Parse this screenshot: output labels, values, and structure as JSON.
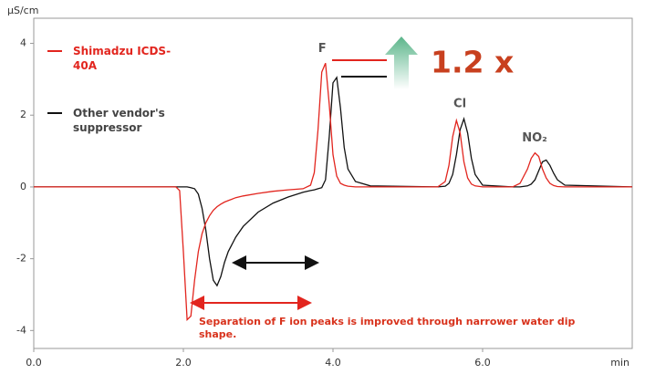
{
  "chart_data": {
    "type": "line",
    "y_label": "μS/cm",
    "x_label": "min",
    "x": [
      0,
      1.9,
      1.95,
      2.0,
      2.05,
      2.1,
      2.15,
      2.2,
      2.25,
      2.3,
      2.35,
      2.4,
      2.45,
      2.5,
      2.55,
      2.6,
      2.7,
      2.8,
      3.0,
      3.2,
      3.4,
      3.6,
      3.7,
      3.75,
      3.8,
      3.85,
      3.9,
      3.95,
      4.0,
      4.05,
      4.1,
      4.15,
      4.2,
      4.3,
      4.5,
      5.4,
      5.5,
      5.55,
      5.6,
      5.65,
      5.7,
      5.75,
      5.8,
      5.85,
      5.9,
      6.0,
      6.4,
      6.5,
      6.6,
      6.65,
      6.7,
      6.75,
      6.8,
      6.85,
      6.9,
      6.95,
      7.0,
      7.1,
      8.0
    ],
    "series": [
      {
        "name": "Shimadzu ICDS-40A",
        "color": "#e2251e",
        "values": [
          0,
          0,
          -0.1,
          -1.8,
          -3.7,
          -3.6,
          -2.6,
          -1.8,
          -1.3,
          -1.0,
          -0.8,
          -0.65,
          -0.55,
          -0.48,
          -0.42,
          -0.38,
          -0.3,
          -0.25,
          -0.18,
          -0.12,
          -0.08,
          -0.05,
          0.05,
          0.4,
          1.6,
          3.2,
          3.45,
          2.3,
          0.9,
          0.3,
          0.1,
          0.05,
          0.02,
          0,
          0,
          0,
          0.15,
          0.6,
          1.4,
          1.85,
          1.5,
          0.7,
          0.25,
          0.08,
          0.03,
          0,
          0,
          0.1,
          0.5,
          0.8,
          0.95,
          0.85,
          0.5,
          0.25,
          0.1,
          0.04,
          0.01,
          0,
          0
        ]
      },
      {
        "name": "Other vendor's suppressor",
        "color": "#111111",
        "values": [
          0,
          0,
          0,
          0,
          0,
          -0.02,
          -0.05,
          -0.2,
          -0.6,
          -1.2,
          -2.0,
          -2.6,
          -2.75,
          -2.5,
          -2.1,
          -1.8,
          -1.4,
          -1.1,
          -0.7,
          -0.45,
          -0.28,
          -0.15,
          -0.1,
          -0.08,
          -0.05,
          -0.02,
          0.2,
          1.4,
          2.9,
          3.05,
          2.2,
          1.1,
          0.5,
          0.15,
          0.03,
          0,
          0.02,
          0.1,
          0.35,
          0.9,
          1.6,
          1.9,
          1.5,
          0.8,
          0.35,
          0.05,
          0,
          0,
          0.03,
          0.08,
          0.2,
          0.45,
          0.7,
          0.75,
          0.6,
          0.38,
          0.2,
          0.05,
          0
        ]
      }
    ],
    "xlim": [
      0,
      8
    ],
    "ylim": [
      -4.5,
      4.7
    ],
    "xticks": [
      {
        "value": 0,
        "label": "0.0"
      },
      {
        "value": 2,
        "label": "2.0"
      },
      {
        "value": 4,
        "label": "4.0"
      },
      {
        "value": 6,
        "label": "6.0"
      }
    ],
    "yticks": [
      -4,
      -2,
      0,
      2,
      4
    ],
    "grid": false,
    "peak_labels": [
      "F",
      "Cl",
      "NO₂"
    ],
    "ratio_label": "1.2 x",
    "note": "Separation of F ion peaks is improved through narrower water dip shape."
  }
}
